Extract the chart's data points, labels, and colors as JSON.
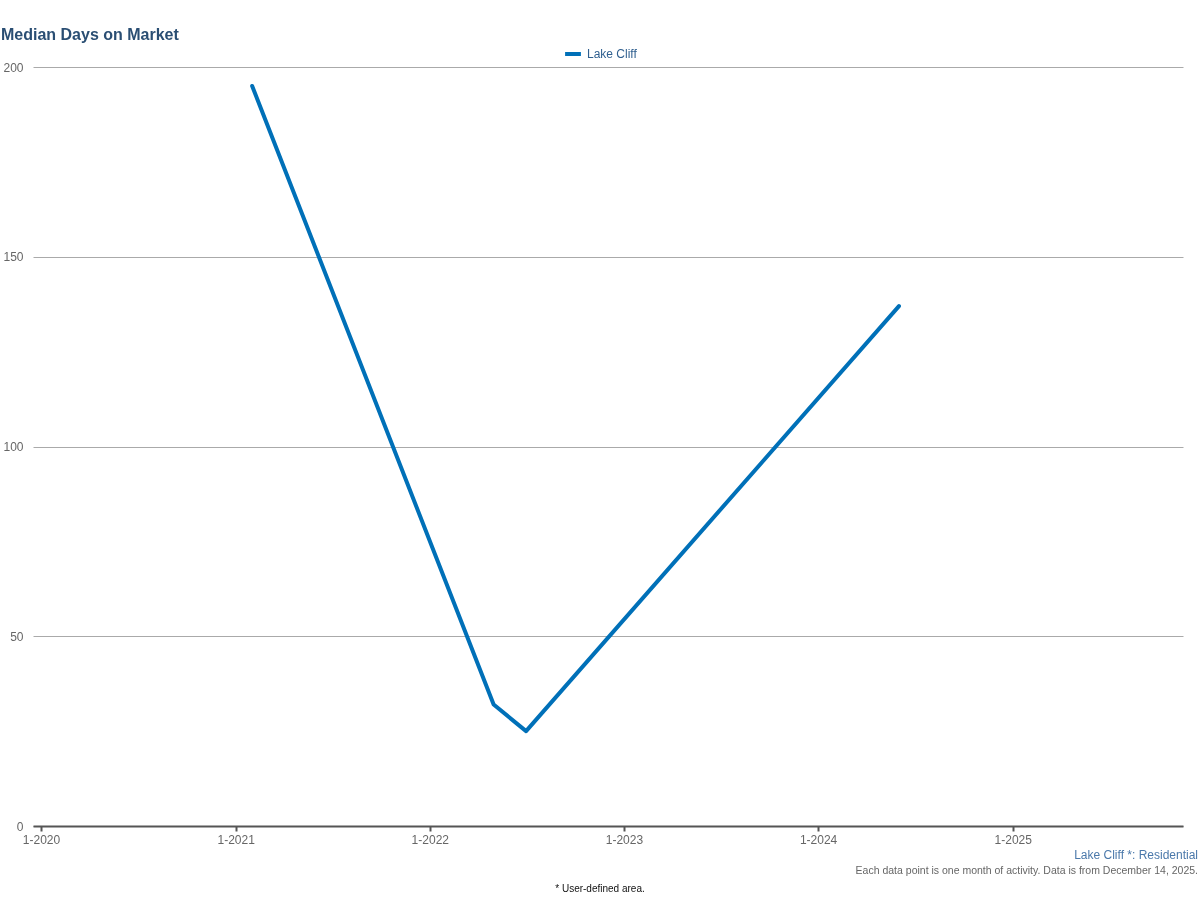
{
  "chart_data": {
    "type": "line",
    "title": "Median Days on Market",
    "x": [
      "2021-02",
      "2022-05",
      "2022-07",
      "2024-06"
    ],
    "series": [
      {
        "name": "Lake Cliff",
        "color": "#0070b8",
        "values": [
          195,
          32,
          25,
          137
        ]
      }
    ],
    "xlim": [
      "2019-12-17",
      "2025-11-17"
    ],
    "xticks": [
      {
        "value": "2020-01",
        "label": "1-2020"
      },
      {
        "value": "2021-01",
        "label": "1-2021"
      },
      {
        "value": "2022-01",
        "label": "1-2022"
      },
      {
        "value": "2023-01",
        "label": "1-2023"
      },
      {
        "value": "2024-01",
        "label": "1-2024"
      },
      {
        "value": "2025-01",
        "label": "1-2025"
      }
    ],
    "ylim": [
      0,
      200
    ],
    "yticks": [
      0,
      50,
      100,
      150,
      200
    ],
    "grid": "y",
    "legend": "top",
    "line_style": "solid",
    "annotations": [
      "Lake Cliff *: Residential",
      "Each data point is one month of activity. Data is from December 14, 2025.",
      "* User-defined area."
    ]
  }
}
